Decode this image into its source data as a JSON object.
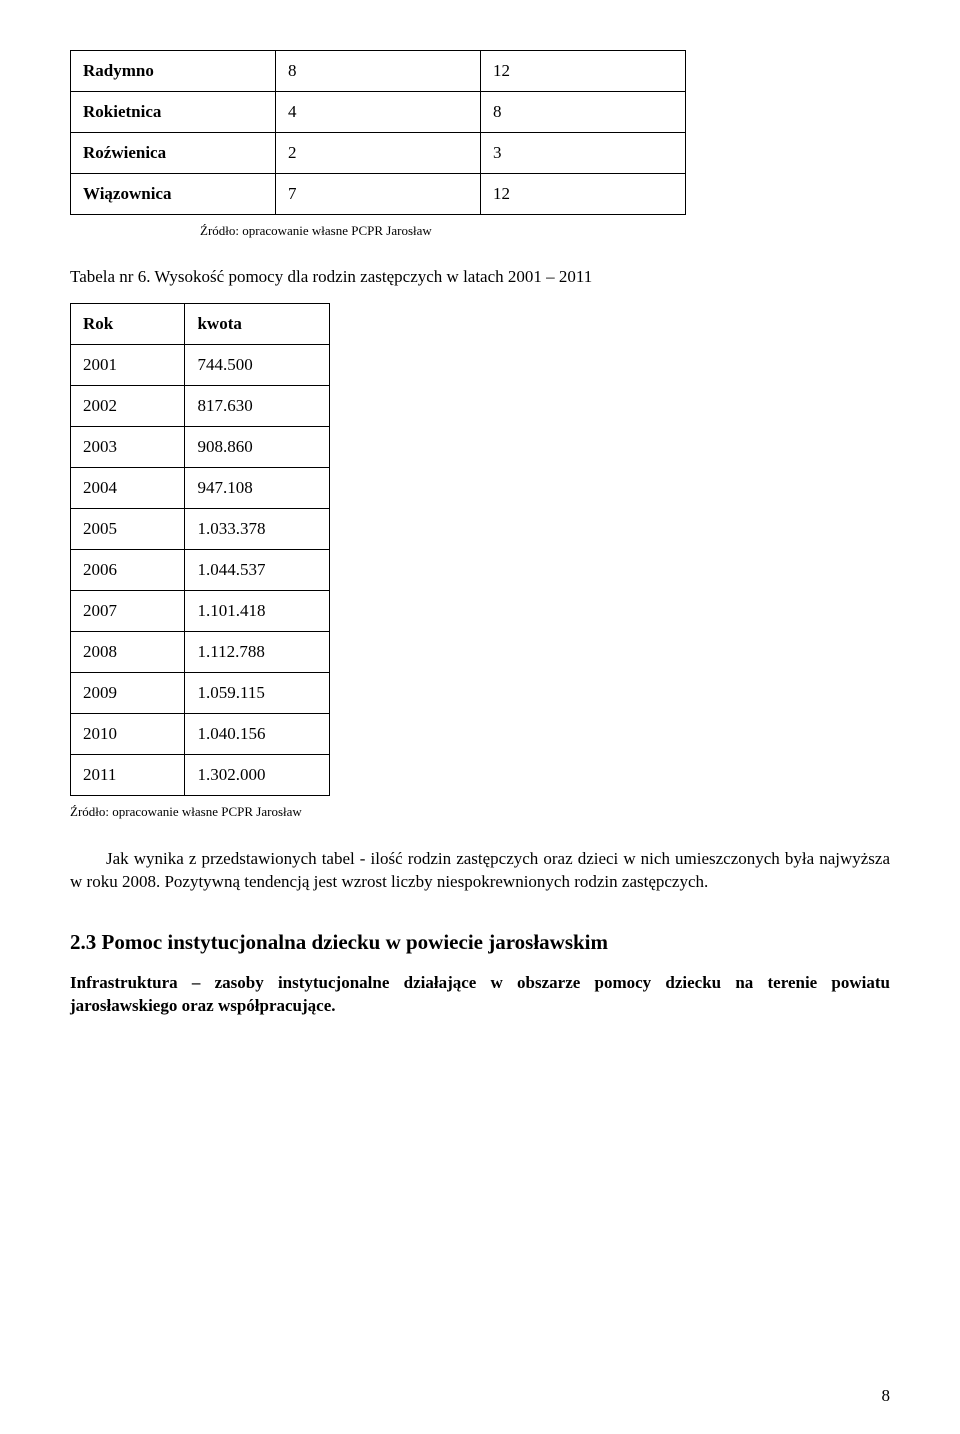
{
  "table1": {
    "rows": [
      {
        "name": "Radymno",
        "c1": "8",
        "c2": "12"
      },
      {
        "name": "Rokietnica",
        "c1": "4",
        "c2": "8"
      },
      {
        "name": "Roźwienica",
        "c1": "2",
        "c2": "3"
      },
      {
        "name": "Wiązownica",
        "c1": "7",
        "c2": "12"
      }
    ],
    "source": "Źródło: opracowanie własne PCPR Jarosław"
  },
  "caption2": "Tabela nr 6. Wysokość pomocy dla rodzin zastępczych w latach 2001 – 2011",
  "table2": {
    "header": {
      "col1": "Rok",
      "col2": "kwota"
    },
    "rows": [
      {
        "year": "2001",
        "amount": "744.500"
      },
      {
        "year": "2002",
        "amount": "817.630"
      },
      {
        "year": "2003",
        "amount": "908.860"
      },
      {
        "year": "2004",
        "amount": "947.108"
      },
      {
        "year": "2005",
        "amount": "1.033.378"
      },
      {
        "year": "2006",
        "amount": "1.044.537"
      },
      {
        "year": "2007",
        "amount": "1.101.418"
      },
      {
        "year": "2008",
        "amount": "1.112.788"
      },
      {
        "year": "2009",
        "amount": "1.059.115"
      },
      {
        "year": "2010",
        "amount": "1.040.156"
      },
      {
        "year": "2011",
        "amount": "1.302.000"
      }
    ],
    "source": "Źródło: opracowanie własne PCPR Jarosław"
  },
  "para1": "Jak wynika z przedstawionych tabel - ilość rodzin zastępczych oraz dzieci w nich umieszczonych była najwyższa w roku 2008. Pozytywną tendencją jest wzrost liczby niespokrewnionych rodzin zastępczych.",
  "section23": "2.3 Pomoc instytucjonalna dziecku w powiecie jarosławskim",
  "infra_label": "Infrastruktura",
  "infra_text": " – zasoby instytucjonalne działające w obszarze pomocy dziecku na terenie powiatu jarosławskiego oraz współpracujące.",
  "pagenum": "8"
}
